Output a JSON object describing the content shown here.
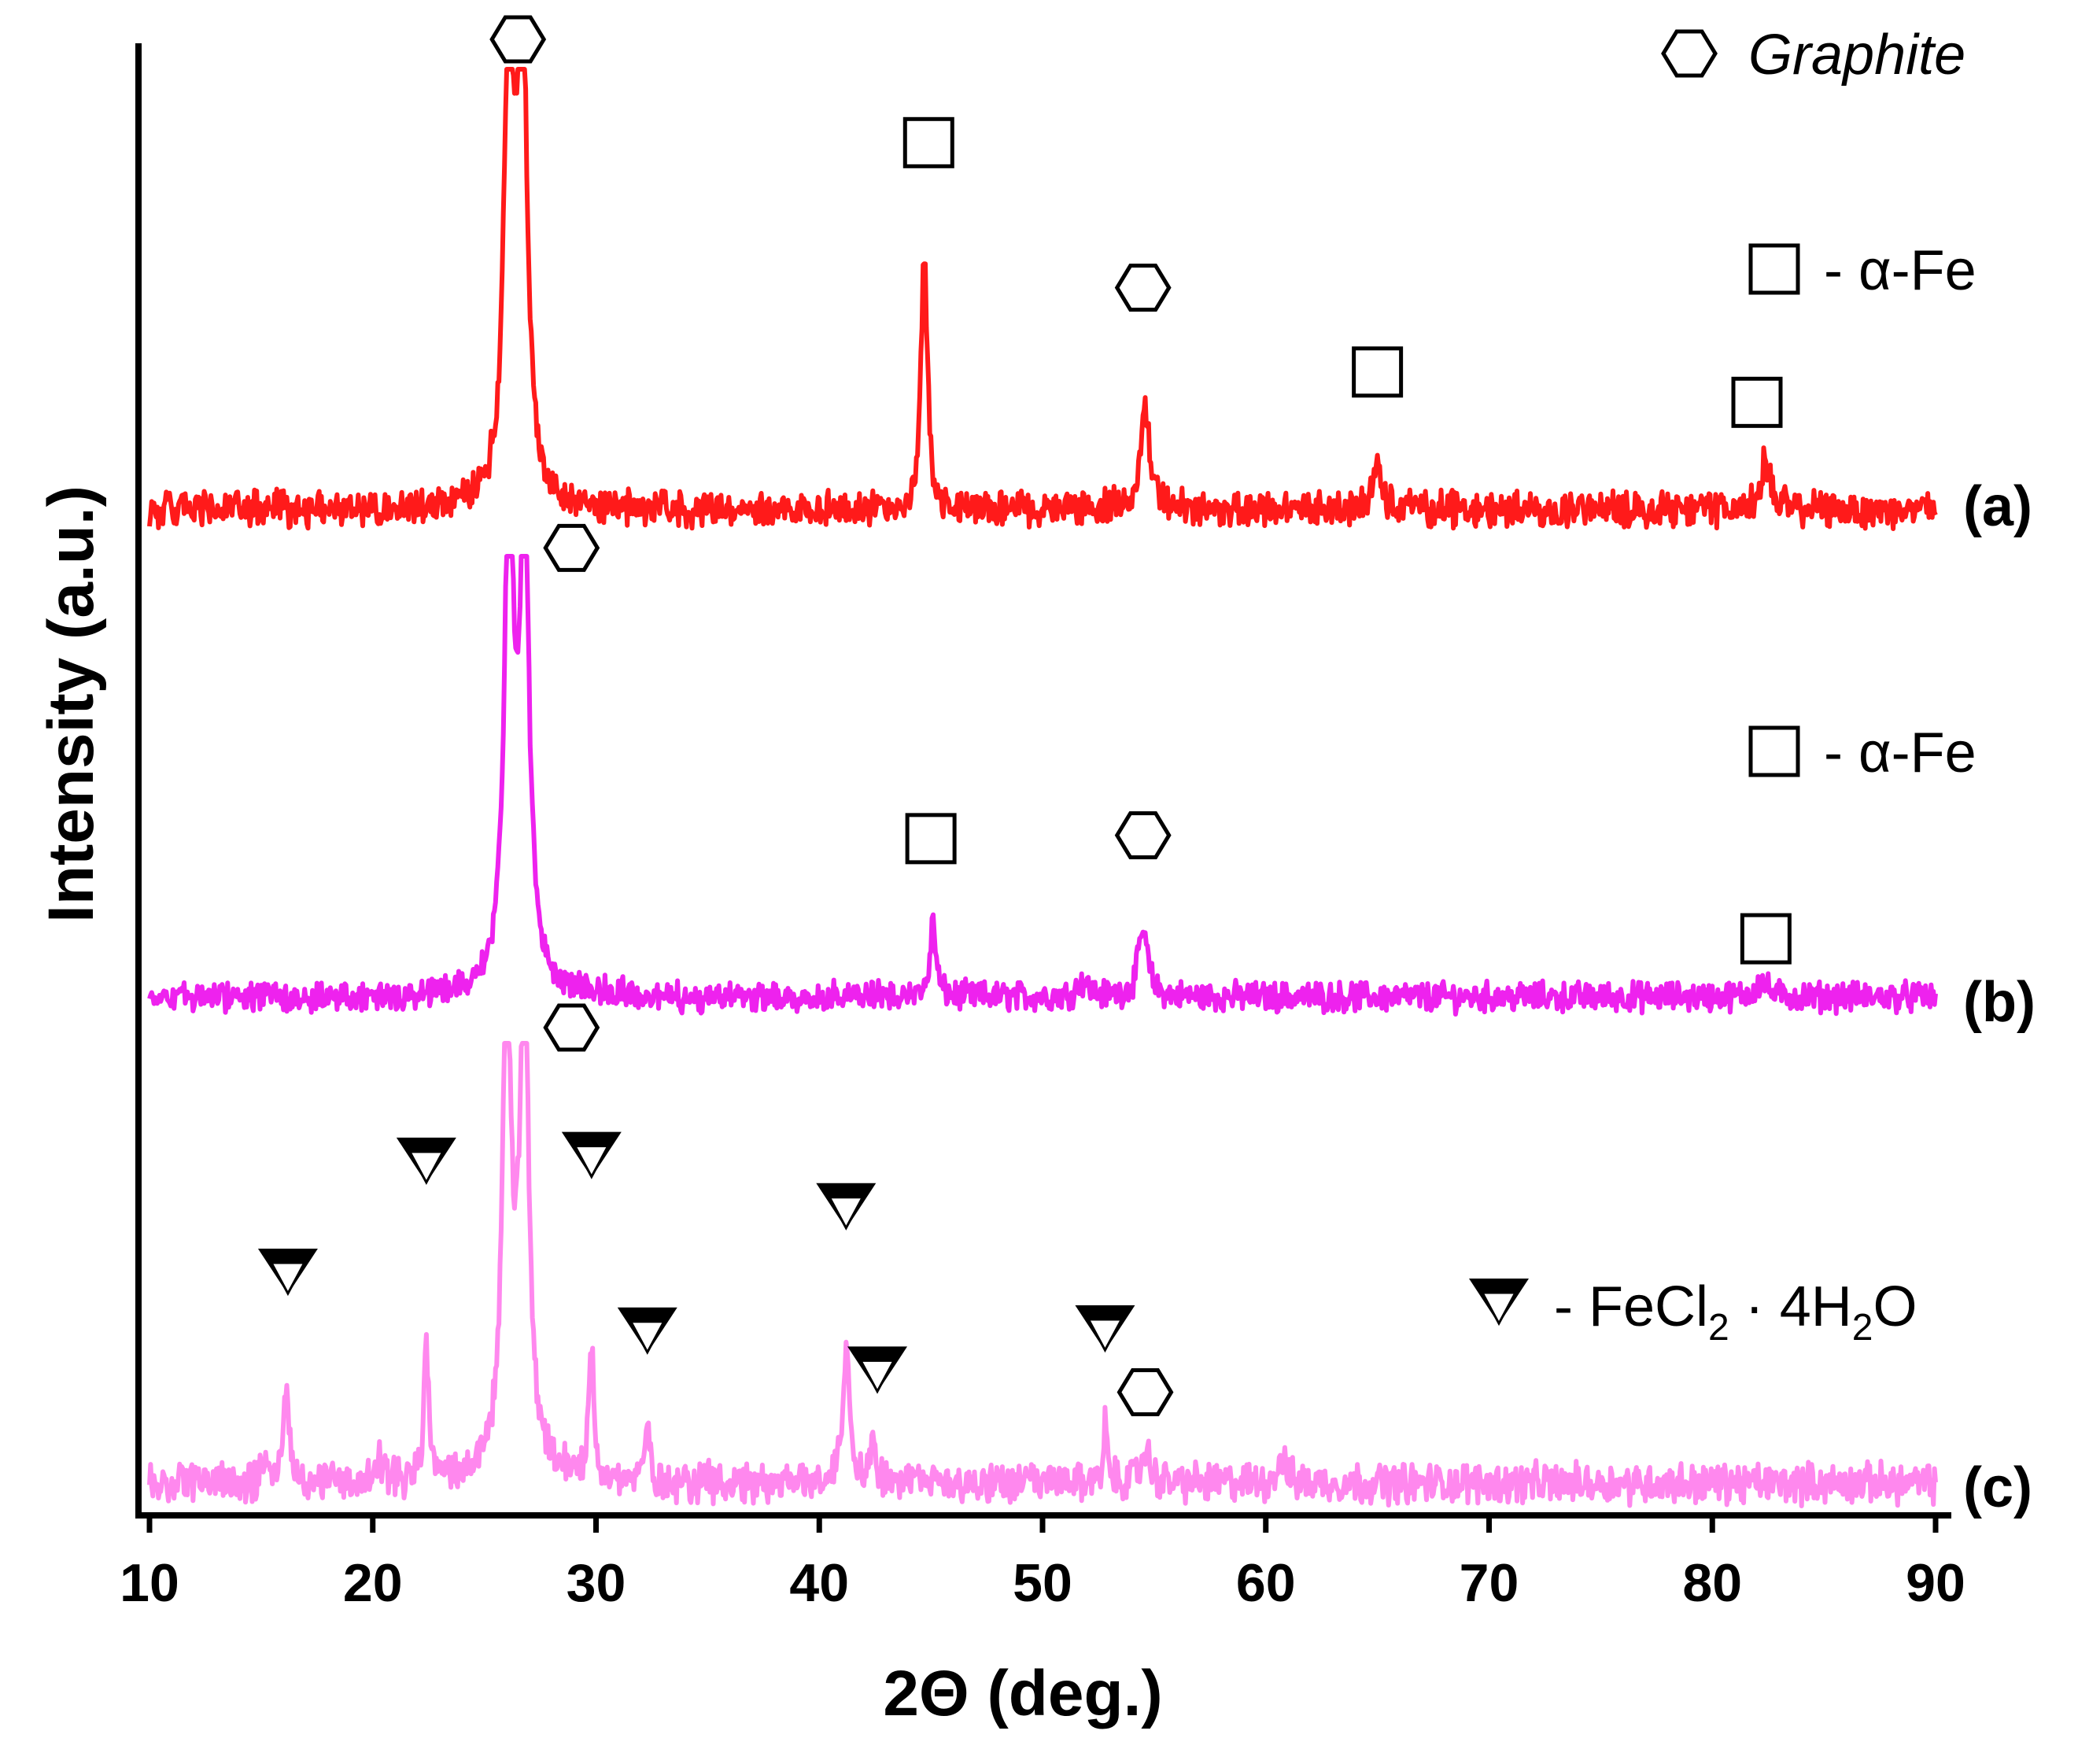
{
  "chart_data": {
    "type": "line",
    "xlabel": "2Θ (deg.)",
    "ylabel": "Intensity (a.u.)",
    "xlim": [
      10,
      90
    ],
    "x_ticks": [
      "10",
      "20",
      "30",
      "40",
      "50",
      "60",
      "70",
      "80",
      "90"
    ],
    "y_ticks": [],
    "grid": false,
    "colors": {
      "a": "#ff1a1a",
      "b": "#ee22ee",
      "c": "#ff88ee"
    },
    "series": [
      {
        "name": "(a)",
        "label": "(a)",
        "color": "#ff1a1a",
        "noise": 0.35,
        "peaks": [
          {
            "x": 26.1,
            "h": 12.0,
            "w": 0.22
          },
          {
            "x": 26.7,
            "h": 12.0,
            "w": 0.22
          },
          {
            "x": 26.4,
            "h": 2.0,
            "w": 0.6
          },
          {
            "x": 44.7,
            "h": 6.5,
            "w": 0.17
          },
          {
            "x": 54.6,
            "h": 2.6,
            "w": 0.25
          },
          {
            "x": 65.0,
            "h": 1.2,
            "w": 0.25
          },
          {
            "x": 82.4,
            "h": 1.2,
            "w": 0.3
          }
        ],
        "markers": [
          {
            "type": "hexagon",
            "x": 26.5,
            "dy": 2450
          },
          {
            "type": "square",
            "x": 44.9,
            "dy": 330
          },
          {
            "type": "hexagon",
            "x": 54.5,
            "dy": 170
          },
          {
            "type": "square",
            "x": 65.0,
            "dy": 115
          },
          {
            "type": "square",
            "x": 82.0,
            "dy": 115
          }
        ]
      },
      {
        "name": "(b)",
        "label": "(b)",
        "color": "#ee22ee",
        "noise": 0.3,
        "peaks": [
          {
            "x": 26.1,
            "h": 12.0,
            "w": 0.22
          },
          {
            "x": 26.8,
            "h": 12.0,
            "w": 0.22
          },
          {
            "x": 26.4,
            "h": 2.0,
            "w": 0.6
          },
          {
            "x": 45.1,
            "h": 1.9,
            "w": 0.15
          },
          {
            "x": 54.5,
            "h": 1.7,
            "w": 0.25
          },
          {
            "x": 51.8,
            "h": 0.4,
            "w": 0.3
          },
          {
            "x": 82.2,
            "h": 0.4,
            "w": 0.3
          }
        ],
        "markers": [
          {
            "type": "hexagon",
            "x": 28.9,
            "dy": 555
          },
          {
            "type": "square",
            "x": 45.0,
            "dy": 135
          },
          {
            "type": "hexagon",
            "x": 54.5,
            "dy": 120
          },
          {
            "type": "square",
            "x": 82.4,
            "dy": 60
          }
        ]
      },
      {
        "name": "(c)",
        "label": "(c)",
        "color": "#ff88ee",
        "noise": 0.4,
        "peaks": [
          {
            "x": 26.0,
            "h": 12.0,
            "w": 0.2
          },
          {
            "x": 26.8,
            "h": 12.0,
            "w": 0.2
          },
          {
            "x": 26.4,
            "h": 2.5,
            "w": 0.6
          },
          {
            "x": 16.1,
            "h": 2.5,
            "w": 0.15
          },
          {
            "x": 22.4,
            "h": 3.5,
            "w": 0.13
          },
          {
            "x": 29.8,
            "h": 3.6,
            "w": 0.13
          },
          {
            "x": 32.3,
            "h": 1.4,
            "w": 0.13
          },
          {
            "x": 41.2,
            "h": 3.3,
            "w": 0.2
          },
          {
            "x": 42.4,
            "h": 1.5,
            "w": 0.12
          },
          {
            "x": 52.8,
            "h": 1.5,
            "w": 0.12
          },
          {
            "x": 54.6,
            "h": 0.8,
            "w": 0.25
          },
          {
            "x": 60.7,
            "h": 0.7,
            "w": 0.2
          },
          {
            "x": 15.1,
            "h": 0.5,
            "w": 0.15
          },
          {
            "x": 20.3,
            "h": 0.6,
            "w": 0.15
          }
        ],
        "markers": [
          {
            "type": "hexagon",
            "x": 28.9,
            "dy": 560
          },
          {
            "type": "triangle",
            "x": 16.2,
            "dy": 180
          },
          {
            "type": "triangle",
            "x": 22.4,
            "dy": 228
          },
          {
            "type": "triangle",
            "x": 29.8,
            "dy": 228
          },
          {
            "type": "triangle",
            "x": 32.3,
            "dy": 120
          },
          {
            "type": "triangle",
            "x": 41.2,
            "dy": 185
          },
          {
            "type": "triangle",
            "x": 42.6,
            "dy": 120
          },
          {
            "type": "triangle",
            "x": 52.8,
            "dy": 120
          },
          {
            "type": "hexagon",
            "x": 54.6,
            "dy": 75
          }
        ]
      }
    ],
    "legend": [
      {
        "symbol": "hexagon",
        "text": "Graphite",
        "style": "italic"
      },
      {
        "symbol": "square",
        "text": "- α-Fe"
      },
      {
        "symbol": "square",
        "text": "- α-Fe"
      },
      {
        "symbol": "triangle",
        "text_parts": [
          "- FeCl",
          "2",
          " · 4H",
          "2",
          "O"
        ]
      }
    ]
  }
}
